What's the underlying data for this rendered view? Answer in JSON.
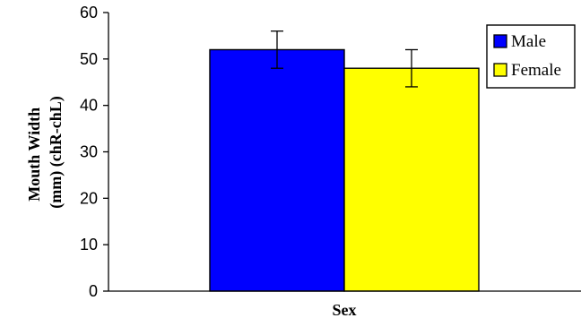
{
  "chart_data": {
    "type": "bar",
    "categories": [
      "Sex"
    ],
    "series": [
      {
        "name": "Male",
        "values": [
          52
        ],
        "error": [
          4
        ],
        "color": "#0000ff"
      },
      {
        "name": "Female",
        "values": [
          48
        ],
        "error": [
          4
        ],
        "color": "#ffff00"
      }
    ],
    "xlabel": "Sex",
    "ylabel": [
      "Mouth Width",
      "(mm) (chR-chL)"
    ],
    "ylim": [
      0,
      60
    ],
    "yticks": [
      0,
      10,
      20,
      30,
      40,
      50,
      60
    ],
    "grid": false,
    "legend_position": "top-right"
  }
}
